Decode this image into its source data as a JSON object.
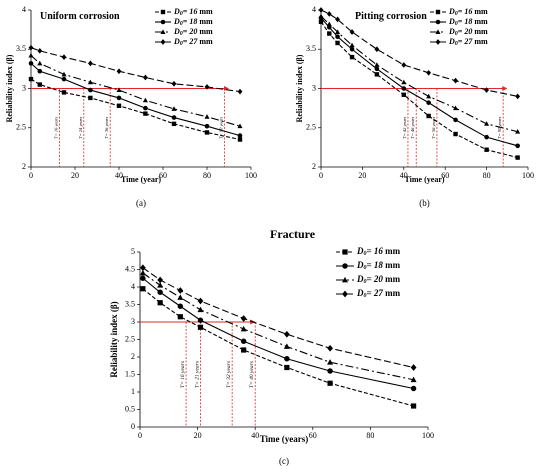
{
  "chart_data": [
    {
      "id": "a",
      "type": "line",
      "title": "Uniform corrosion",
      "caption": "(a)",
      "xlabel": "Time (year)",
      "ylabel": "Reliability index (β)",
      "xlim": [
        0,
        100
      ],
      "ylim": [
        2,
        4
      ],
      "xticks": [
        0,
        20,
        40,
        60,
        80,
        100
      ],
      "yticks": [
        2,
        2.5,
        3,
        3.5,
        4
      ],
      "legend_position": "top-right",
      "series": [
        {
          "name": "D₀= 16 mm",
          "legend_prefix": "D",
          "legend_sub": "0",
          "legend_value": "= 16",
          "legend_unit": " mm",
          "marker": "square",
          "dash": "4,2",
          "x": [
            0,
            4,
            15,
            27,
            40,
            52,
            65,
            80,
            95
          ],
          "y": [
            3.12,
            3.05,
            2.95,
            2.88,
            2.78,
            2.68,
            2.55,
            2.44,
            2.35
          ]
        },
        {
          "name": "D₀= 18 mm",
          "legend_prefix": "D",
          "legend_sub": "0",
          "legend_value": "= 18",
          "legend_unit": " mm",
          "marker": "circle",
          "dash": "none",
          "x": [
            0,
            4,
            15,
            27,
            40,
            52,
            65,
            80,
            95
          ],
          "y": [
            3.32,
            3.22,
            3.12,
            2.98,
            2.88,
            2.75,
            2.63,
            2.52,
            2.4
          ]
        },
        {
          "name": "D₀= 20 mm",
          "legend_prefix": "D",
          "legend_sub": "0",
          "legend_value": "= 20",
          "legend_unit": " mm",
          "marker": "triangle",
          "dash": "8,3,2,3",
          "x": [
            0,
            4,
            15,
            27,
            40,
            52,
            65,
            80,
            95
          ],
          "y": [
            3.42,
            3.32,
            3.18,
            3.08,
            2.98,
            2.85,
            2.74,
            2.64,
            2.52
          ]
        },
        {
          "name": "D₀= 27 mm",
          "legend_prefix": "D",
          "legend_sub": "0",
          "legend_value": "= 27",
          "legend_unit": " mm",
          "marker": "diamond",
          "dash": "7,3",
          "x": [
            0,
            4,
            15,
            27,
            40,
            52,
            65,
            80,
            95
          ],
          "y": [
            3.52,
            3.48,
            3.4,
            3.32,
            3.22,
            3.14,
            3.06,
            3.02,
            2.96
          ]
        }
      ],
      "threshold": {
        "y": 3.0,
        "x_end": 90
      },
      "annotations": [
        {
          "x": 13,
          "text": "T= 16 years"
        },
        {
          "x": 24,
          "text": "T= 24 years"
        },
        {
          "x": 36,
          "text": "T= 36 years"
        },
        {
          "x": 88,
          "text": "T= 90 years"
        }
      ]
    },
    {
      "id": "b",
      "type": "line",
      "title": "Pitting corrosion",
      "caption": "(b)",
      "xlabel": "Time (year)",
      "ylabel": "Reliability index (β)",
      "xlim": [
        0,
        100
      ],
      "ylim": [
        2,
        4
      ],
      "xticks": [
        0,
        20,
        40,
        60,
        80,
        100
      ],
      "yticks": [
        2,
        2.5,
        3,
        3.5,
        4
      ],
      "legend_position": "top-right",
      "series": [
        {
          "name": "D₀= 16 mm",
          "legend_prefix": "D",
          "legend_sub": "0",
          "legend_value": "= 16",
          "legend_unit": " mm",
          "marker": "square",
          "dash": "4,2",
          "x": [
            0,
            4,
            8,
            15,
            27,
            40,
            52,
            65,
            80,
            95
          ],
          "y": [
            3.85,
            3.7,
            3.58,
            3.4,
            3.18,
            2.92,
            2.65,
            2.42,
            2.22,
            2.12
          ]
        },
        {
          "name": "D₀= 18 mm",
          "legend_prefix": "D",
          "legend_sub": "0",
          "legend_value": "= 18",
          "legend_unit": " mm",
          "marker": "circle",
          "dash": "none",
          "x": [
            0,
            4,
            8,
            15,
            27,
            40,
            52,
            65,
            80,
            95
          ],
          "y": [
            3.9,
            3.78,
            3.66,
            3.5,
            3.25,
            3.0,
            2.82,
            2.6,
            2.38,
            2.27
          ]
        },
        {
          "name": "D₀= 20 mm",
          "legend_prefix": "D",
          "legend_sub": "0",
          "legend_value": "= 20",
          "legend_unit": " mm",
          "marker": "triangle",
          "dash": "8,3,2,3",
          "x": [
            0,
            4,
            8,
            15,
            27,
            40,
            52,
            65,
            80,
            95
          ],
          "y": [
            3.92,
            3.82,
            3.72,
            3.55,
            3.3,
            3.08,
            2.9,
            2.75,
            2.55,
            2.45
          ]
        },
        {
          "name": "D₀= 27 mm",
          "legend_prefix": "D",
          "legend_sub": "0",
          "legend_value": "= 27",
          "legend_unit": " mm",
          "marker": "diamond",
          "dash": "7,3",
          "x": [
            0,
            4,
            8,
            15,
            27,
            40,
            52,
            65,
            80,
            95
          ],
          "y": [
            4.0,
            3.95,
            3.88,
            3.72,
            3.5,
            3.3,
            3.2,
            3.1,
            2.98,
            2.9
          ]
        }
      ],
      "threshold": {
        "y": 3.0,
        "x_end": 90
      },
      "annotations": [
        {
          "x": 42,
          "text": "T= 42 years"
        },
        {
          "x": 46,
          "text": "T= 46 years"
        },
        {
          "x": 56,
          "text": "T= 56 years"
        },
        {
          "x": 88,
          "text": "T= 90 years"
        }
      ]
    },
    {
      "id": "c",
      "type": "line",
      "title": "Fracture",
      "caption": "(c)",
      "xlabel": "Time (years)",
      "ylabel": "Reliability index (β)",
      "xlim": [
        0,
        100
      ],
      "ylim": [
        0,
        5
      ],
      "xticks": [
        0,
        20,
        40,
        60,
        80,
        100
      ],
      "yticks": [
        0,
        0.5,
        1,
        1.5,
        2,
        2.5,
        3,
        3.5,
        4,
        4.5,
        5
      ],
      "legend_position": "top-right",
      "series": [
        {
          "name": "D₀= 16 mm",
          "legend_prefix": "D",
          "legend_sub": "0",
          "legend_value": "= 16",
          "legend_unit": " mm",
          "marker": "square",
          "dash": "4,2",
          "x": [
            1,
            7,
            14,
            21,
            36,
            51,
            66,
            95
          ],
          "y": [
            3.95,
            3.55,
            3.15,
            2.85,
            2.2,
            1.7,
            1.25,
            0.6
          ]
        },
        {
          "name": "D₀= 18 mm",
          "legend_prefix": "D",
          "legend_sub": "0",
          "legend_value": "= 18",
          "legend_unit": " mm",
          "marker": "circle",
          "dash": "none",
          "x": [
            1,
            7,
            14,
            21,
            36,
            51,
            66,
            95
          ],
          "y": [
            4.25,
            3.85,
            3.45,
            3.05,
            2.45,
            1.95,
            1.6,
            1.1
          ]
        },
        {
          "name": "D₀= 20 mm",
          "legend_prefix": "D",
          "legend_sub": "0",
          "legend_value": "= 20",
          "legend_unit": " mm",
          "marker": "triangle",
          "dash": "8,3,2,3",
          "x": [
            1,
            7,
            14,
            21,
            36,
            51,
            66,
            95
          ],
          "y": [
            4.4,
            4.05,
            3.7,
            3.35,
            2.8,
            2.3,
            1.85,
            1.35
          ]
        },
        {
          "name": "D₀= 27 mm",
          "legend_prefix": "D",
          "legend_sub": "0",
          "legend_value": "= 27",
          "legend_unit": " mm",
          "marker": "diamond",
          "dash": "7,3",
          "x": [
            1,
            7,
            14,
            21,
            36,
            51,
            66,
            95
          ],
          "y": [
            4.55,
            4.2,
            3.9,
            3.6,
            3.1,
            2.65,
            2.25,
            1.7
          ]
        }
      ],
      "threshold": {
        "y": 3.0,
        "x_end": 40
      },
      "annotations": [
        {
          "x": 16,
          "text": "T= 16 years"
        },
        {
          "x": 21,
          "text": "T= 21 years"
        },
        {
          "x": 32,
          "text": "T= 32 years"
        },
        {
          "x": 40,
          "text": "T= 40 years"
        }
      ]
    }
  ],
  "colors": {
    "threshold": "#e3262a",
    "series": "#000000",
    "axis": "#000000"
  }
}
